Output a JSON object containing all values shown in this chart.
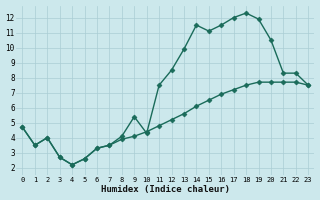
{
  "xlabel": "Humidex (Indice chaleur)",
  "bg_color": "#cce8ec",
  "grid_color": "#aacdd4",
  "line_color": "#1a6b5a",
  "marker": "D",
  "markersize": 2.5,
  "linewidth": 1.0,
  "xlim": [
    -0.5,
    23.5
  ],
  "ylim": [
    1.5,
    12.8
  ],
  "xticks": [
    0,
    1,
    2,
    3,
    4,
    5,
    6,
    7,
    8,
    9,
    10,
    11,
    12,
    13,
    14,
    15,
    16,
    17,
    18,
    19,
    20,
    21,
    22,
    23
  ],
  "yticks": [
    2,
    3,
    4,
    5,
    6,
    7,
    8,
    9,
    10,
    11,
    12
  ],
  "line1_x": [
    0,
    1,
    2,
    3,
    4,
    5,
    6,
    7,
    8,
    9,
    10,
    11,
    12,
    13,
    14,
    15,
    16,
    17,
    18,
    19,
    20,
    21,
    22,
    23
  ],
  "line1_y": [
    4.7,
    3.5,
    4.0,
    2.7,
    2.2,
    2.6,
    3.3,
    3.5,
    4.1,
    5.4,
    4.3,
    7.5,
    8.5,
    9.9,
    11.5,
    11.1,
    11.5,
    12.0,
    12.3,
    11.9,
    10.5,
    8.3,
    8.3,
    7.5
  ],
  "line2_x": [
    0,
    1,
    2,
    3,
    4,
    5,
    6,
    7,
    8,
    9,
    10,
    11,
    12,
    13,
    14,
    15,
    16,
    17,
    18,
    19,
    20,
    21,
    22,
    23
  ],
  "line2_y": [
    4.7,
    3.5,
    4.0,
    2.7,
    2.2,
    2.6,
    3.3,
    3.5,
    3.9,
    4.1,
    4.4,
    4.8,
    5.2,
    5.6,
    6.1,
    6.5,
    6.9,
    7.2,
    7.5,
    7.7,
    7.7,
    7.7,
    7.7,
    7.5
  ]
}
